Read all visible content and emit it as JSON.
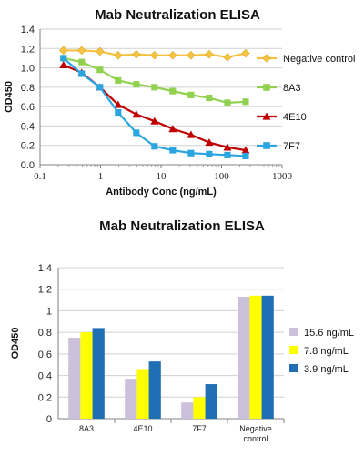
{
  "chart_data": [
    {
      "type": "line",
      "title": "Mab Neutralization ELISA",
      "xlabel": "Antibody Conc (ng/mL)",
      "ylabel": "OD450",
      "x_scale": "log",
      "xlim": [
        0.1,
        1000
      ],
      "ylim": [
        0,
        1.4
      ],
      "x_ticks": [
        "0.1",
        "1",
        "10",
        "100",
        "1000"
      ],
      "y_ticks": [
        "0.0",
        "0.2",
        "0.4",
        "0.6",
        "0.8",
        "1.0",
        "1.2",
        "1.4"
      ],
      "grid": "horizontal",
      "legend_position": "right",
      "x": [
        0.244,
        0.488,
        0.977,
        1.95,
        3.9,
        7.8,
        15.6,
        31.25,
        62.5,
        125,
        250
      ],
      "series": [
        {
          "name": "Negative control",
          "color": "#f5c242",
          "marker": "diamond",
          "values": [
            1.18,
            1.18,
            1.17,
            1.13,
            1.14,
            1.13,
            1.13,
            1.13,
            1.14,
            1.11,
            1.15
          ]
        },
        {
          "name": "8A3",
          "color": "#92d050",
          "marker": "square",
          "values": [
            1.1,
            1.06,
            0.98,
            0.87,
            0.83,
            0.8,
            0.76,
            0.72,
            0.69,
            0.64,
            0.65
          ]
        },
        {
          "name": "4E10",
          "color": "#c00000",
          "marker": "triangle",
          "values": [
            1.03,
            0.95,
            0.8,
            0.62,
            0.52,
            0.45,
            0.37,
            0.31,
            0.23,
            0.18,
            0.15
          ]
        },
        {
          "name": "7F7",
          "color": "#2aa5df",
          "marker": "square",
          "values": [
            1.1,
            0.94,
            0.8,
            0.54,
            0.33,
            0.19,
            0.15,
            0.12,
            0.11,
            0.1,
            0.09
          ]
        }
      ]
    },
    {
      "type": "bar",
      "title": "Mab Neutralization ELISA",
      "ylabel": "OD450",
      "ylim": [
        0,
        1.4
      ],
      "y_ticks": [
        "0",
        "0.2",
        "0.4",
        "0.6",
        "0.8",
        "1",
        "1.2",
        "1.4"
      ],
      "grid": "horizontal",
      "legend_position": "right",
      "categories": [
        [
          "8A3"
        ],
        [
          "4E10"
        ],
        [
          "7F7"
        ],
        [
          "Negative",
          "control"
        ]
      ],
      "series": [
        {
          "name": "15.6 ng/mL",
          "color": "#ccc0da",
          "values": [
            0.75,
            0.37,
            0.15,
            1.13
          ]
        },
        {
          "name": "7.8 ng/mL",
          "color": "#ffff00",
          "values": [
            0.8,
            0.46,
            0.2,
            1.14
          ]
        },
        {
          "name": "3.9 ng/mL",
          "color": "#1f6fb4",
          "values": [
            0.84,
            0.53,
            0.32,
            1.14
          ]
        }
      ]
    }
  ]
}
